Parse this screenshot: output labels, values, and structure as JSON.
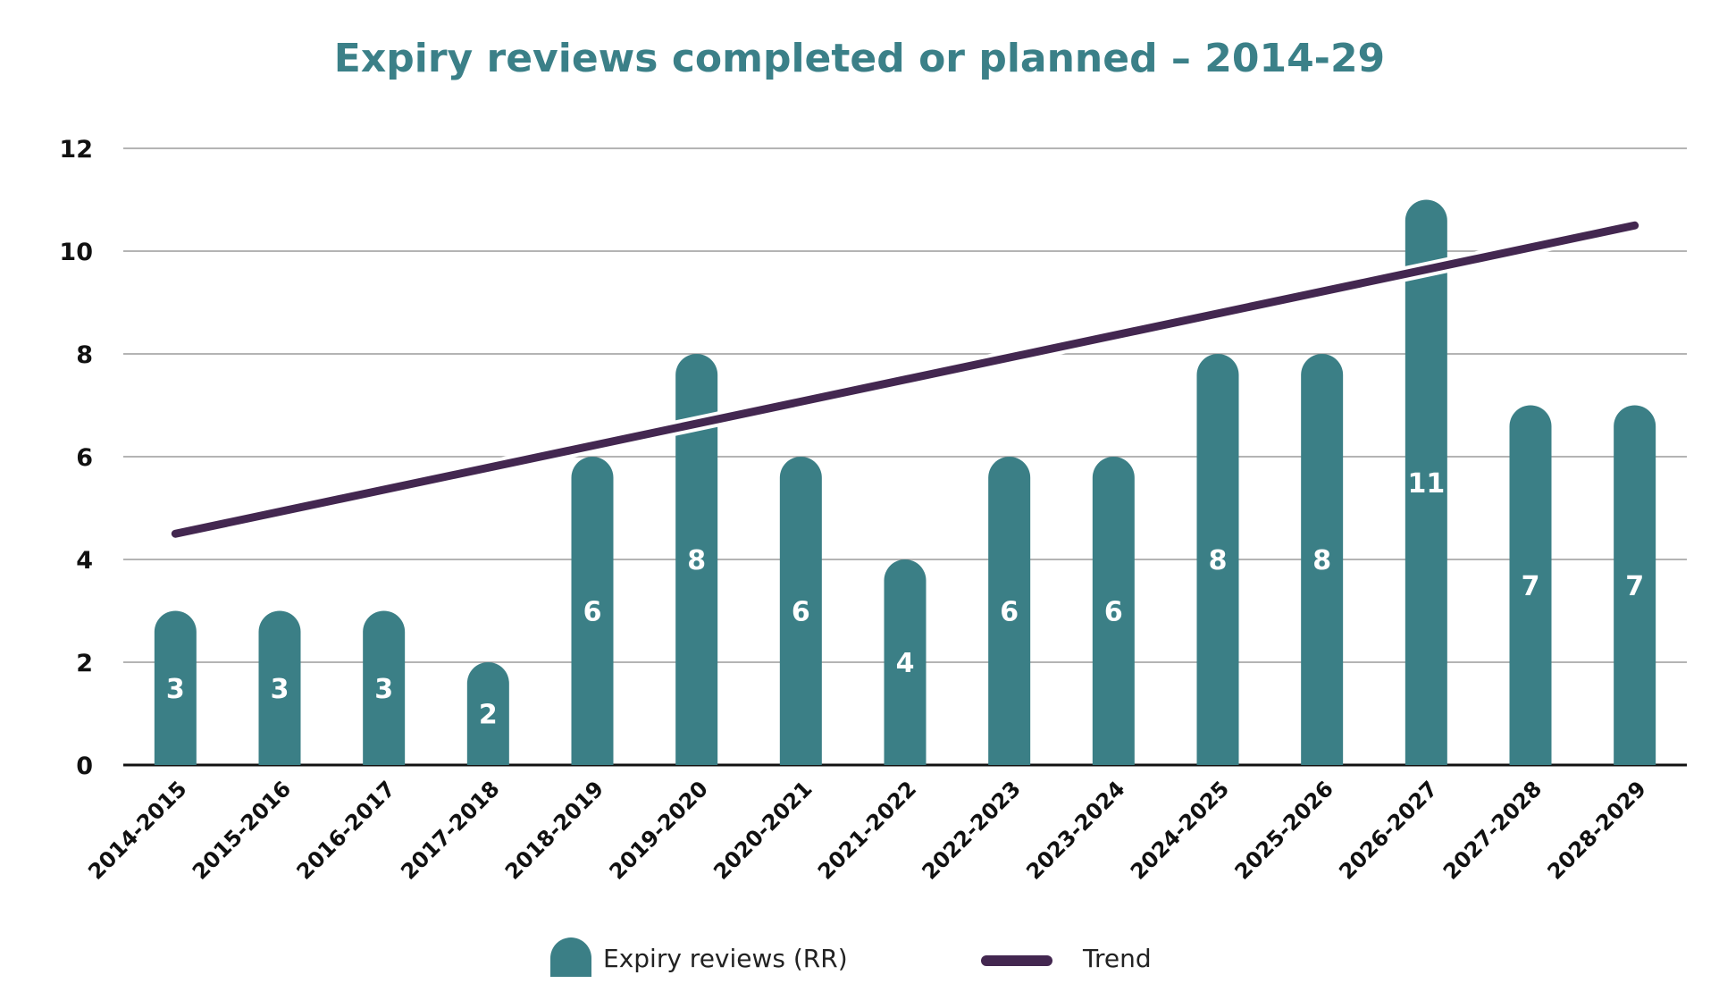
{
  "chart_data": {
    "type": "bar",
    "title": "Expiry reviews completed or planned – 2014-29",
    "categories": [
      "2014-2015",
      "2015-2016",
      "2016-2017",
      "2017-2018",
      "2018-2019",
      "2019-2020",
      "2020-2021",
      "2021-2022",
      "2022-2023",
      "2023-2024",
      "2024-2025",
      "2025-2026",
      "2026-2027",
      "2027-2028",
      "2028-2029"
    ],
    "series": [
      {
        "name": "Expiry reviews (RR)",
        "type": "bar",
        "values": [
          3,
          3,
          3,
          2,
          6,
          8,
          6,
          4,
          6,
          6,
          8,
          8,
          11,
          7,
          7
        ],
        "data_labels": [
          "3",
          "3",
          "3",
          "2",
          "6",
          "8",
          "6",
          "4",
          "6",
          "6",
          "8",
          "8",
          "11",
          "7",
          "7"
        ],
        "color": "#3b7f86"
      },
      {
        "name": "Trend",
        "type": "line",
        "start": 4.5,
        "end": 10.5,
        "color": "#432750"
      }
    ],
    "ylim": [
      0,
      12
    ],
    "yticks": [
      "0",
      "2",
      "4",
      "6",
      "8",
      "10",
      "12"
    ],
    "xlabel": "",
    "ylabel": "",
    "grid": true,
    "legend_position": "bottom",
    "title_color": "#3b8088",
    "axis_color": "#111111",
    "grid_color": "#888888"
  }
}
